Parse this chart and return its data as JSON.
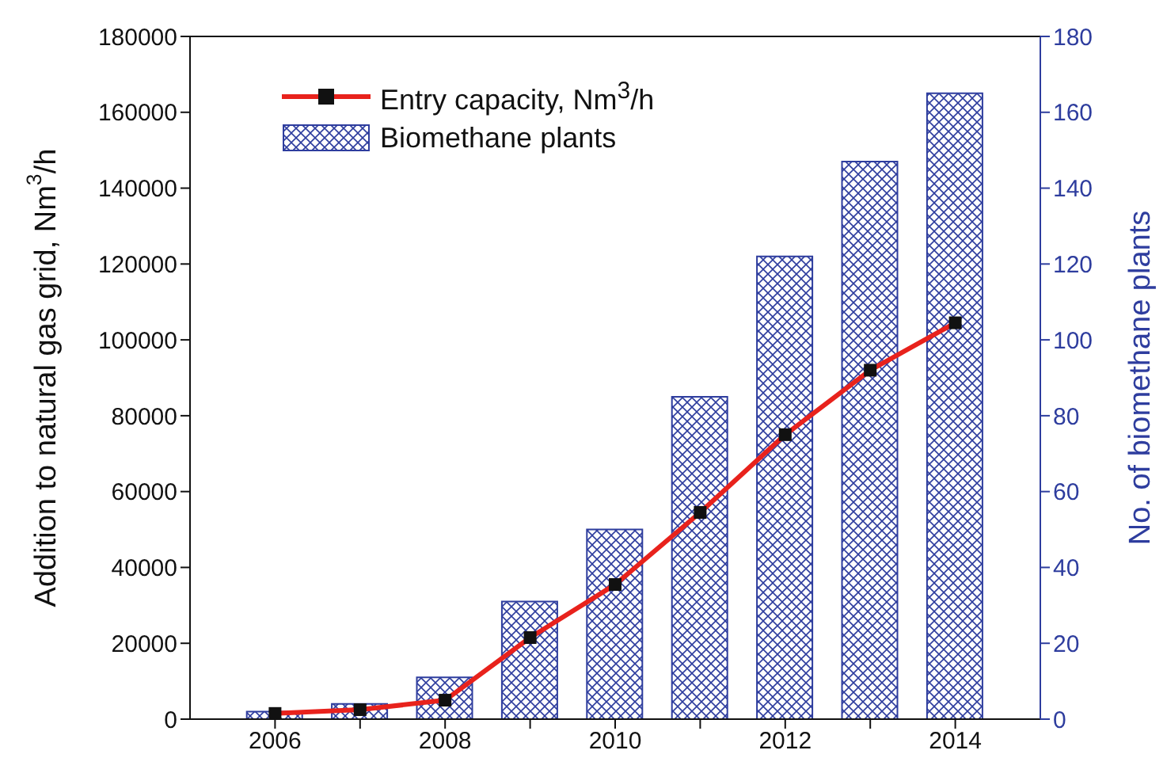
{
  "chart_data": {
    "type": "bar",
    "xlabel": null,
    "ylabel": "Addition to natural gas grid, Nm$^{3}$/h",
    "y2label": "No. of biomethane plants",
    "x": [
      2006,
      2007,
      2008,
      2009,
      2010,
      2011,
      2012,
      2013,
      2014
    ],
    "series": [
      {
        "name": "Entry capacity, Nm$^{3}$/h",
        "type": "line",
        "color": "#e8221c",
        "values": [
          1500,
          2500,
          5000,
          21500,
          35500,
          54500,
          75000,
          92000,
          104500
        ],
        "marker": "square"
      },
      {
        "name": "Biomethane plants",
        "axis": "y2",
        "color": "#2e3d9e",
        "values": [
          2,
          4,
          11,
          31,
          50,
          85,
          122,
          147,
          165
        ]
      }
    ],
    "xlim": [
      2005,
      2015
    ],
    "xticks": [
      2006,
      {
        "value": 2007,
        "label": null
      },
      2008,
      {
        "value": 2009,
        "label": null
      },
      2010,
      {
        "value": 2011,
        "label": null
      },
      2012,
      {
        "value": 2013,
        "label": null
      },
      2014
    ],
    "ylim": [
      0,
      180000
    ],
    "yticks": [
      0,
      20000,
      40000,
      60000,
      80000,
      100000,
      120000,
      140000,
      160000,
      180000
    ],
    "y2lim": [
      0,
      180
    ],
    "y2ticks": [
      0,
      20,
      40,
      60,
      80,
      100,
      120,
      140,
      160,
      180
    ],
    "grid": false,
    "legend": "top left"
  }
}
